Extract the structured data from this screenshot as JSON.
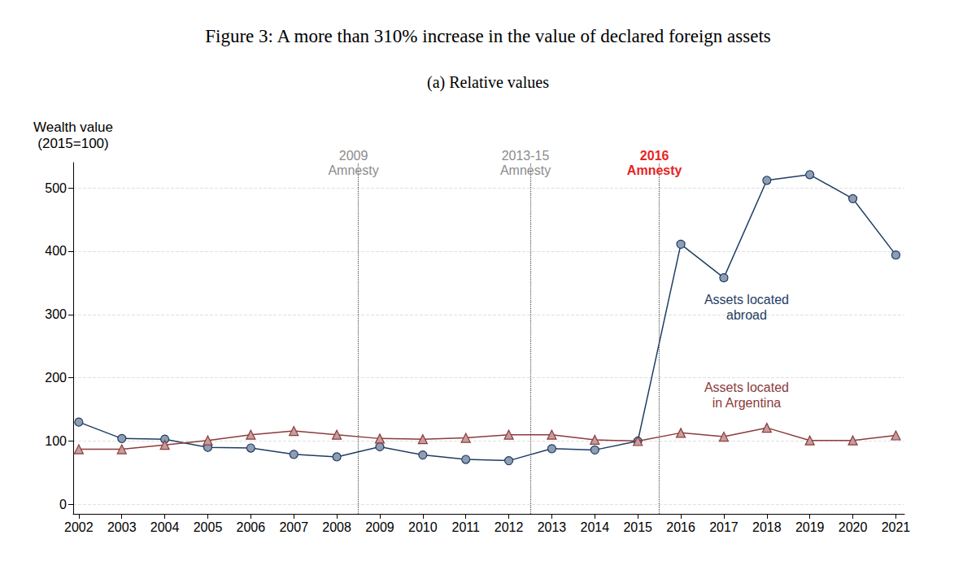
{
  "chart_data": {
    "type": "line",
    "title": "Figure 3: A more than 310% increase in the value of declared foreign assets",
    "subtitle": "(a) Relative values",
    "y_label": "Wealth value\n(2015=100)",
    "x": [
      2002,
      2003,
      2004,
      2005,
      2006,
      2007,
      2008,
      2009,
      2010,
      2011,
      2012,
      2013,
      2014,
      2015,
      2016,
      2017,
      2018,
      2019,
      2020,
      2021
    ],
    "series": [
      {
        "name": "Assets located\nabroad",
        "color": "#1f3d64",
        "marker": "circle",
        "values": [
          130,
          104,
          103,
          90,
          89,
          79,
          75,
          91,
          78,
          71,
          69,
          88,
          86,
          100,
          411,
          358,
          512,
          521,
          483,
          394
        ]
      },
      {
        "name": "Assets located\nin Argentina",
        "color": "#8c3b3b",
        "marker": "triangle",
        "values": [
          87,
          87,
          94,
          101,
          110,
          116,
          110,
          104,
          103,
          105,
          110,
          110,
          102,
          100,
          113,
          107,
          121,
          101,
          101,
          109
        ]
      }
    ],
    "xlim": [
      2001.87,
      2021.2
    ],
    "xticks": [
      2002,
      2003,
      2004,
      2005,
      2006,
      2007,
      2008,
      2009,
      2010,
      2011,
      2012,
      2013,
      2014,
      2015,
      2016,
      2017,
      2018,
      2019,
      2020,
      2021
    ],
    "ylim": [
      -15,
      540
    ],
    "yticks": [
      0,
      100,
      200,
      300,
      400,
      500
    ],
    "grid": true,
    "annotations": [
      {
        "x": 2008.5,
        "text": "2009\nAmnesty",
        "color": "#8c8c8c"
      },
      {
        "x": 2012.5,
        "text": "2013-15\nAmnesty",
        "color": "#8c8c8c"
      },
      {
        "x": 2015.5,
        "text": "2016\nAmnesty",
        "color": "#e8231f"
      }
    ]
  }
}
